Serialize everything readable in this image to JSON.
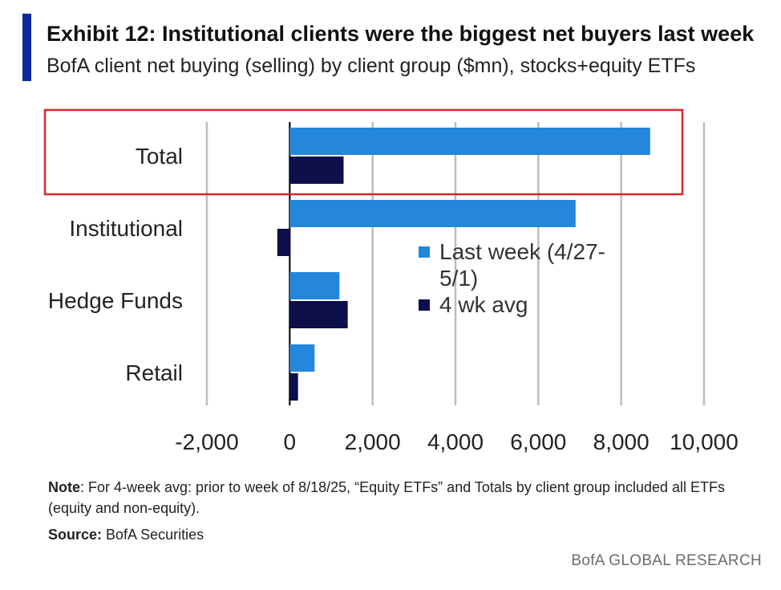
{
  "header": {
    "title": "Exhibit 12: Institutional clients were the biggest net buyers last week",
    "subtitle": "BofA client net buying (selling) by client group ($mn), stocks+equity ETFs"
  },
  "chart_data": {
    "type": "bar",
    "orientation": "horizontal",
    "categories": [
      "Total",
      "Institutional",
      "Hedge Funds",
      "Retail"
    ],
    "series": [
      {
        "name": "Last week (4/27-5/1)",
        "color": "#2487dc",
        "values": [
          8700,
          6900,
          1200,
          600
        ]
      },
      {
        "name": "4 wk avg",
        "color": "#0c0f4a",
        "values": [
          1300,
          -300,
          1400,
          200
        ]
      }
    ],
    "x_ticks": [
      "-2,000",
      "0",
      "2,000",
      "4,000",
      "6,000",
      "8,000",
      "10,000"
    ],
    "xlim": [
      -2000,
      10000
    ],
    "grid": true,
    "legend_position": "center-right",
    "legend_lines": [
      [
        "Last week (4/27-",
        "5/1)"
      ],
      [
        "4 wk avg"
      ]
    ],
    "highlight": {
      "category": "Total",
      "color": "#d9262b"
    }
  },
  "footer": {
    "note_label": "Note",
    "note_text": ": For 4-week avg: prior to week of 8/18/25, “Equity ETFs” and Totals by client group included all ETFs (equity and non-equity).",
    "source_label": "Source:",
    "source_text": " BofA Securities",
    "brand": "BofA GLOBAL RESEARCH"
  }
}
